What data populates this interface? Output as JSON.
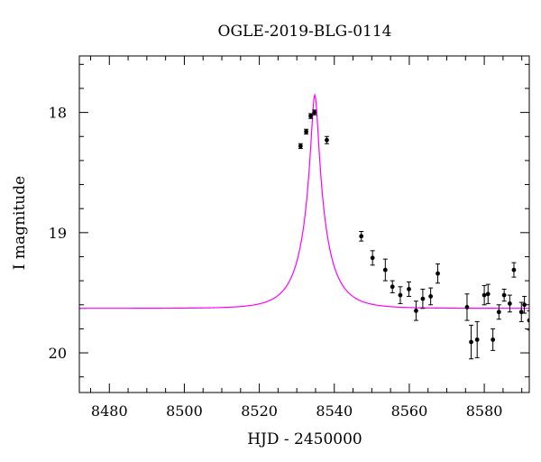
{
  "chart_data": {
    "type": "scatter",
    "title": "OGLE-2019-BLG-0114",
    "xlabel": "HJD - 2450000",
    "ylabel": "I magnitude",
    "xlim": [
      8472,
      8592
    ],
    "ylim": [
      20.33,
      17.53
    ],
    "y_inverted": true,
    "grid": false,
    "x_ticks": [
      8480,
      8500,
      8520,
      8540,
      8560,
      8580
    ],
    "y_ticks": [
      18,
      19,
      20
    ],
    "series": [
      {
        "kind": "points-with-errorbars",
        "color": "#000000",
        "points": [
          {
            "x": 8531.0,
            "y": 18.28,
            "err": 0.02
          },
          {
            "x": 8532.5,
            "y": 18.16,
            "err": 0.02
          },
          {
            "x": 8533.7,
            "y": 18.03,
            "err": 0.02
          },
          {
            "x": 8534.7,
            "y": 18.0,
            "err": 0.02
          },
          {
            "x": 8538.0,
            "y": 18.23,
            "err": 0.03
          },
          {
            "x": 8547.2,
            "y": 19.03,
            "err": 0.04
          },
          {
            "x": 8550.2,
            "y": 19.21,
            "err": 0.06
          },
          {
            "x": 8553.6,
            "y": 19.31,
            "err": 0.09
          },
          {
            "x": 8555.5,
            "y": 19.45,
            "err": 0.05
          },
          {
            "x": 8557.6,
            "y": 19.52,
            "err": 0.07
          },
          {
            "x": 8559.9,
            "y": 19.47,
            "err": 0.06
          },
          {
            "x": 8561.8,
            "y": 19.65,
            "err": 0.08
          },
          {
            "x": 8563.6,
            "y": 19.55,
            "err": 0.08
          },
          {
            "x": 8565.7,
            "y": 19.53,
            "err": 0.07
          },
          {
            "x": 8567.6,
            "y": 19.34,
            "err": 0.08
          },
          {
            "x": 8575.4,
            "y": 19.62,
            "err": 0.11
          },
          {
            "x": 8576.5,
            "y": 19.91,
            "err": 0.14
          },
          {
            "x": 8578.1,
            "y": 19.89,
            "err": 0.15
          },
          {
            "x": 8580.0,
            "y": 19.52,
            "err": 0.08
          },
          {
            "x": 8581.0,
            "y": 19.51,
            "err": 0.08
          },
          {
            "x": 8582.3,
            "y": 19.89,
            "err": 0.09
          },
          {
            "x": 8583.9,
            "y": 19.66,
            "err": 0.06
          },
          {
            "x": 8585.3,
            "y": 19.52,
            "err": 0.05
          },
          {
            "x": 8586.8,
            "y": 19.59,
            "err": 0.07
          },
          {
            "x": 8587.9,
            "y": 19.31,
            "err": 0.06
          },
          {
            "x": 8589.9,
            "y": 19.66,
            "err": 0.08
          },
          {
            "x": 8590.7,
            "y": 19.6,
            "err": 0.07
          },
          {
            "x": 8592.0,
            "y": 19.73,
            "err": 0.08
          }
        ]
      },
      {
        "kind": "model-curve",
        "color": "#ff00ff",
        "model": "point-lens microlensing",
        "t0": 8534.8,
        "u0": 0.12,
        "tE": 7.5,
        "baseline_mag": 19.63,
        "blend_fraction": 0.56
      }
    ]
  }
}
